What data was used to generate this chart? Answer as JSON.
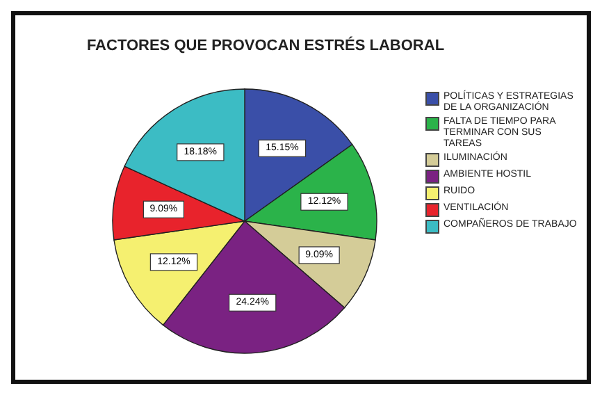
{
  "chart_data": {
    "type": "pie",
    "title": "FACTORES QUE PROVOCAN ESTRÉS LABORAL",
    "categories": [
      "POLÍTICAS Y ESTRATEGIAS DE LA ORGANIZACIÓN",
      "FALTA DE TIEMPO PARA TERMINAR CON SUS TAREAS",
      "ILUMINACIÓN",
      "AMBIENTE HOSTIL",
      "RUIDO",
      "VENTILACIÓN",
      "COMPAÑEROS DE TRABAJO"
    ],
    "values": [
      15.15,
      12.12,
      9.09,
      24.24,
      12.12,
      9.09,
      18.18
    ],
    "colors": [
      "#3a4fa8",
      "#2bb34a",
      "#d4cc98",
      "#7a2282",
      "#f5f070",
      "#e8232c",
      "#3cbcc4"
    ],
    "value_labels": [
      "15.15%",
      "12.12%",
      "9.09%",
      "24.24%",
      "12.12%",
      "9.09%",
      "18.18%"
    ],
    "legend": "right"
  }
}
